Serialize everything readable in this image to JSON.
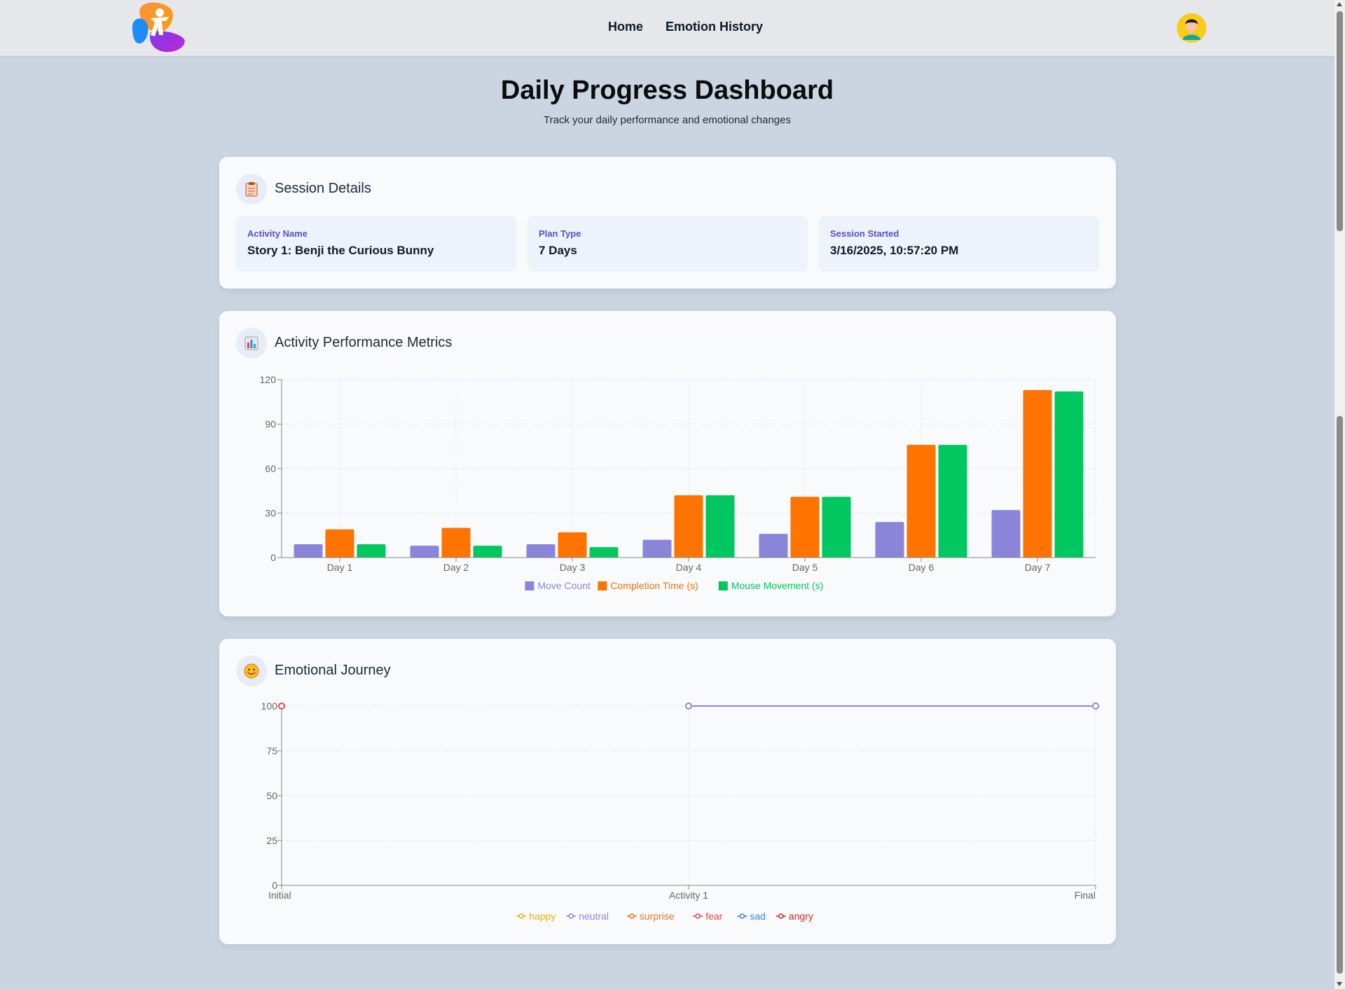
{
  "nav": {
    "links": [
      "Home",
      "Emotion History"
    ],
    "logo_icon": "kid-jumping-logo",
    "avatar_icon": "user-avatar-icon"
  },
  "header": {
    "title": "Daily Progress Dashboard",
    "subtitle": "Track your daily performance and emotional changes"
  },
  "session": {
    "title": "Session Details",
    "icon": "clipboard-icon",
    "items": [
      {
        "label": "Activity Name",
        "value": "Story 1: Benji the Curious Bunny"
      },
      {
        "label": "Plan Type",
        "value": "7 Days"
      },
      {
        "label": "Session Started",
        "value": "3/16/2025, 10:57:20 PM"
      }
    ]
  },
  "metrics": {
    "title": "Activity Performance Metrics",
    "icon": "bar-chart-icon"
  },
  "emotions": {
    "title": "Emotional Journey",
    "icon": "smiley-icon"
  },
  "colors": {
    "move": "#8b85d9",
    "completion": "#ff7300",
    "mouse": "#00c75f",
    "happy": "#eab308",
    "neutral": "#9a7fe3",
    "surprise": "#f97316",
    "fear": "#ef4444",
    "sad": "#3b82f6",
    "angry": "#dc2626"
  },
  "chart_data": [
    {
      "type": "bar",
      "categories": [
        "Day 1",
        "Day 2",
        "Day 3",
        "Day 4",
        "Day 5",
        "Day 6",
        "Day 7"
      ],
      "series": [
        {
          "name": "Move Count",
          "values": [
            9,
            8,
            9,
            12,
            16,
            24,
            32
          ]
        },
        {
          "name": "Completion Time (s)",
          "values": [
            19,
            20,
            17,
            42,
            41,
            76,
            113
          ]
        },
        {
          "name": "Mouse Movement (s)",
          "values": [
            9,
            8,
            7,
            42,
            41,
            76,
            112
          ]
        }
      ],
      "ylim": [
        0,
        120
      ],
      "yticks": [
        0,
        30,
        60,
        90,
        120
      ],
      "grid": true,
      "legend": "bottom"
    },
    {
      "type": "line",
      "x": [
        "Initial",
        "Activity 1",
        "Final"
      ],
      "series": [
        {
          "name": "happy",
          "values": [
            null,
            null,
            null
          ]
        },
        {
          "name": "neutral",
          "values": [
            null,
            100,
            100
          ]
        },
        {
          "name": "surprise",
          "values": [
            null,
            null,
            null
          ]
        },
        {
          "name": "fear",
          "values": [
            100,
            null,
            null
          ]
        },
        {
          "name": "sad",
          "values": [
            null,
            null,
            null
          ]
        },
        {
          "name": "angry",
          "values": [
            null,
            null,
            null
          ]
        }
      ],
      "ylim": [
        0,
        100
      ],
      "yticks": [
        0,
        25,
        50,
        75,
        100
      ],
      "grid": true,
      "legend": "bottom"
    }
  ]
}
